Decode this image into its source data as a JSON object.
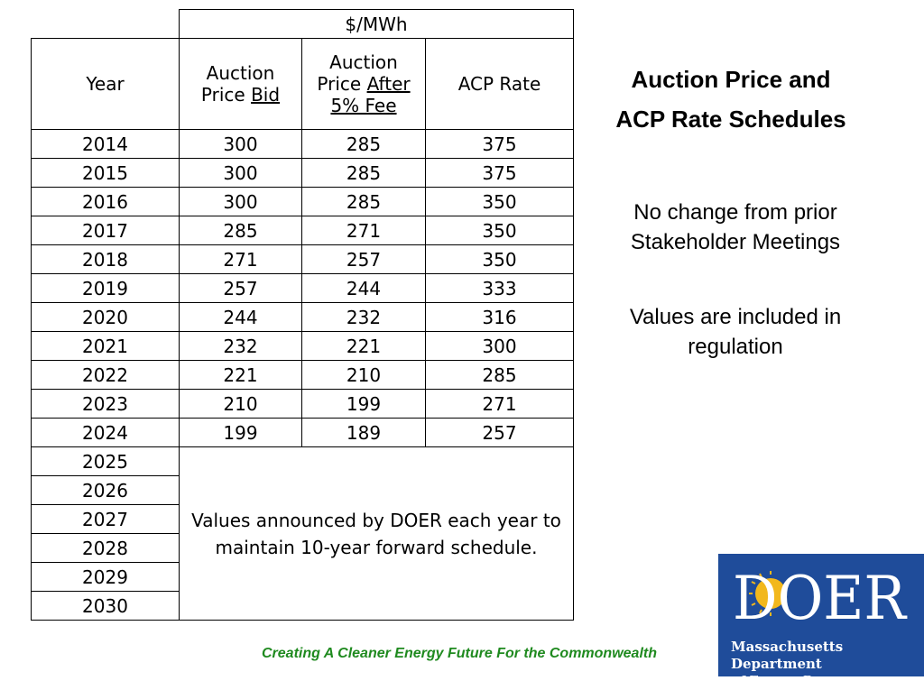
{
  "table": {
    "unit_header": "$/MWh",
    "col_year": "Year",
    "col_bid_line1": "Auction",
    "col_bid_line2_plain": "Price ",
    "col_bid_line2_underlined": "Bid",
    "col_after_line1": "Auction",
    "col_after_line2_plain": "Price ",
    "col_after_line2_underlined": "After",
    "col_after_line3": "5% Fee",
    "col_acp": "ACP Rate",
    "rows": [
      {
        "year": "2014",
        "bid": "300",
        "after": "285",
        "acp": "375"
      },
      {
        "year": "2015",
        "bid": "300",
        "after": "285",
        "acp": "375"
      },
      {
        "year": "2016",
        "bid": "300",
        "after": "285",
        "acp": "350"
      },
      {
        "year": "2017",
        "bid": "285",
        "after": "271",
        "acp": "350"
      },
      {
        "year": "2018",
        "bid": "271",
        "after": "257",
        "acp": "350"
      },
      {
        "year": "2019",
        "bid": "257",
        "after": "244",
        "acp": "333"
      },
      {
        "year": "2020",
        "bid": "244",
        "after": "232",
        "acp": "316"
      },
      {
        "year": "2021",
        "bid": "232",
        "after": "221",
        "acp": "300"
      },
      {
        "year": "2022",
        "bid": "221",
        "after": "210",
        "acp": "285"
      },
      {
        "year": "2023",
        "bid": "210",
        "after": "199",
        "acp": "271"
      },
      {
        "year": "2024",
        "bid": "199",
        "after": "189",
        "acp": "257"
      }
    ],
    "future_years": [
      "2025",
      "2026",
      "2027",
      "2028",
      "2029",
      "2030"
    ],
    "future_note_line1": "Values announced by DOER each year to",
    "future_note_line2": "maintain 10-year forward schedule."
  },
  "side": {
    "title_line1": "Auction Price and",
    "title_line2": "ACP Rate Schedules",
    "note1_line1": "No change from prior",
    "note1_line2": "Stakeholder Meetings",
    "note2_line1": "Values are included in",
    "note2_line2": "regulation"
  },
  "footer": {
    "tagline": "Creating  A Cleaner  Energy  Future  For the Commonwealth"
  },
  "logo": {
    "wordmark": "DOER",
    "caption_line1": "Massachusetts Department",
    "caption_line2": "of Energy Resources",
    "bg_color": "#1f4c9a",
    "sun_color": "#f2b81c"
  }
}
